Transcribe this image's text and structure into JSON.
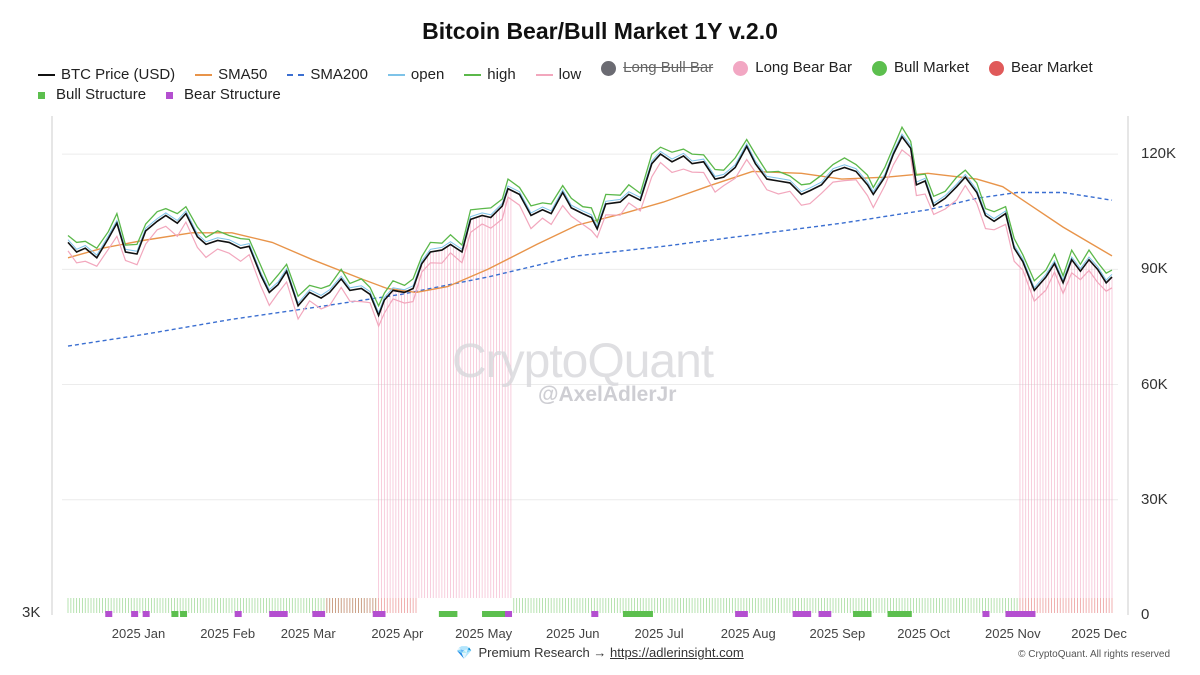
{
  "chart_data": {
    "type": "line",
    "title": "Bitcoin Bear/Bull Market 1Y v.2.0",
    "legend": [
      {
        "name": "BTC Price (USD)",
        "kind": "line",
        "color": "#111111"
      },
      {
        "name": "SMA50",
        "kind": "line",
        "color": "#e8944a"
      },
      {
        "name": "SMA200",
        "kind": "dashed",
        "color": "#3b6fd1"
      },
      {
        "name": "open",
        "kind": "line",
        "color": "#7ec3e8"
      },
      {
        "name": "high",
        "kind": "line",
        "color": "#5bb84a"
      },
      {
        "name": "low",
        "kind": "line",
        "color": "#f2a7bd"
      },
      {
        "name": "Long Bull Bar",
        "kind": "dot",
        "color": "#6b6b72",
        "hidden": true
      },
      {
        "name": "Long Bear Bar",
        "kind": "dot",
        "color": "#f2a7c3"
      },
      {
        "name": "Bull Market",
        "kind": "dot",
        "color": "#5cbf4e"
      },
      {
        "name": "Bear Market",
        "kind": "dot",
        "color": "#e05a5a"
      },
      {
        "name": "Bull Structure",
        "kind": "square",
        "color": "#5cbf4e"
      },
      {
        "name": "Bear Structure",
        "kind": "square",
        "color": "#b44fd0"
      }
    ],
    "legend_placement": "top",
    "x_axis": {
      "ticks": [
        "2025 Jan",
        "2025 Feb",
        "2025 Mar",
        "2025 Apr",
        "2025 May",
        "2025 Jun",
        "2025 Jul",
        "2025 Aug",
        "2025 Sep",
        "2025 Oct",
        "2025 Nov",
        "2025 Dec"
      ],
      "tick_dates": [
        "2025-01-01",
        "2025-02-01",
        "2025-03-01",
        "2025-04-01",
        "2025-05-01",
        "2025-06-01",
        "2025-07-01",
        "2025-08-01",
        "2025-09-01",
        "2025-10-01",
        "2025-11-01",
        "2025-12-01"
      ],
      "range": [
        "2024-12-20",
        "2025-12-18"
      ]
    },
    "y_axis": {
      "position": "right",
      "ticks": [
        0,
        30000,
        60000,
        90000,
        120000
      ],
      "tick_labels": [
        "0",
        "30K",
        "60K",
        "90K",
        "120K"
      ],
      "ylim": [
        0,
        132000
      ],
      "left_label": "3K"
    },
    "grid": true,
    "series": [
      {
        "name": "BTC Price (USD)",
        "points": [
          [
            "2024-12-20",
            97000
          ],
          [
            "2024-12-23",
            94500
          ],
          [
            "2024-12-26",
            95500
          ],
          [
            "2024-12-30",
            93000
          ],
          [
            "2025-01-03",
            98000
          ],
          [
            "2025-01-06",
            102000
          ],
          [
            "2025-01-09",
            94500
          ],
          [
            "2025-01-13",
            94000
          ],
          [
            "2025-01-16",
            100000
          ],
          [
            "2025-01-20",
            102500
          ],
          [
            "2025-01-23",
            104000
          ],
          [
            "2025-01-27",
            102000
          ],
          [
            "2025-01-30",
            104500
          ],
          [
            "2025-02-03",
            98500
          ],
          [
            "2025-02-06",
            96500
          ],
          [
            "2025-02-10",
            97500
          ],
          [
            "2025-02-14",
            97000
          ],
          [
            "2025-02-18",
            95500
          ],
          [
            "2025-02-21",
            96000
          ],
          [
            "2025-02-25",
            88500
          ],
          [
            "2025-02-28",
            84000
          ],
          [
            "2025-03-03",
            86000
          ],
          [
            "2025-03-06",
            89500
          ],
          [
            "2025-03-10",
            80500
          ],
          [
            "2025-03-14",
            84000
          ],
          [
            "2025-03-18",
            82500
          ],
          [
            "2025-03-21",
            84000
          ],
          [
            "2025-03-25",
            87500
          ],
          [
            "2025-03-28",
            84500
          ],
          [
            "2025-04-01",
            85000
          ],
          [
            "2025-04-04",
            83500
          ],
          [
            "2025-04-07",
            78000
          ],
          [
            "2025-04-09",
            82000
          ],
          [
            "2025-04-12",
            84500
          ],
          [
            "2025-04-16",
            84000
          ],
          [
            "2025-04-19",
            85000
          ],
          [
            "2025-04-22",
            91500
          ],
          [
            "2025-04-25",
            94500
          ],
          [
            "2025-04-29",
            95000
          ],
          [
            "2025-05-02",
            96500
          ],
          [
            "2025-05-06",
            94500
          ],
          [
            "2025-05-09",
            103000
          ],
          [
            "2025-05-13",
            104000
          ],
          [
            "2025-05-16",
            103500
          ],
          [
            "2025-05-20",
            106500
          ],
          [
            "2025-05-22",
            111000
          ],
          [
            "2025-05-26",
            109500
          ],
          [
            "2025-05-30",
            104000
          ],
          [
            "2025-06-03",
            105500
          ],
          [
            "2025-06-06",
            104500
          ],
          [
            "2025-06-10",
            110000
          ],
          [
            "2025-06-13",
            106000
          ],
          [
            "2025-06-17",
            104500
          ],
          [
            "2025-06-20",
            103500
          ],
          [
            "2025-06-22",
            100500
          ],
          [
            "2025-06-25",
            107000
          ],
          [
            "2025-06-30",
            107500
          ],
          [
            "2025-07-03",
            109500
          ],
          [
            "2025-07-07",
            108000
          ],
          [
            "2025-07-11",
            117500
          ],
          [
            "2025-07-14",
            120000
          ],
          [
            "2025-07-18",
            118000
          ],
          [
            "2025-07-22",
            119500
          ],
          [
            "2025-07-25",
            117500
          ],
          [
            "2025-07-29",
            118000
          ],
          [
            "2025-08-02",
            113500
          ],
          [
            "2025-08-05",
            114000
          ],
          [
            "2025-08-09",
            116500
          ],
          [
            "2025-08-13",
            122000
          ],
          [
            "2025-08-16",
            117500
          ],
          [
            "2025-08-20",
            113500
          ],
          [
            "2025-08-24",
            113000
          ],
          [
            "2025-08-28",
            112500
          ],
          [
            "2025-09-01",
            109500
          ],
          [
            "2025-09-04",
            110500
          ],
          [
            "2025-09-08",
            112000
          ],
          [
            "2025-09-12",
            115500
          ],
          [
            "2025-09-16",
            116500
          ],
          [
            "2025-09-20",
            115500
          ],
          [
            "2025-09-24",
            112000
          ],
          [
            "2025-09-26",
            109500
          ],
          [
            "2025-09-30",
            114000
          ],
          [
            "2025-10-03",
            120000
          ],
          [
            "2025-10-06",
            124500
          ],
          [
            "2025-10-09",
            121500
          ],
          [
            "2025-10-11",
            112000
          ],
          [
            "2025-10-14",
            113000
          ],
          [
            "2025-10-17",
            106500
          ],
          [
            "2025-10-21",
            108500
          ],
          [
            "2025-10-25",
            111500
          ],
          [
            "2025-10-28",
            114000
          ],
          [
            "2025-11-01",
            110000
          ],
          [
            "2025-11-04",
            104000
          ],
          [
            "2025-11-07",
            102500
          ],
          [
            "2025-11-11",
            104500
          ],
          [
            "2025-11-14",
            95500
          ],
          [
            "2025-11-17",
            92000
          ],
          [
            "2025-11-21",
            84500
          ],
          [
            "2025-11-25",
            88000
          ],
          [
            "2025-11-28",
            91500
          ],
          [
            "2025-12-01",
            86500
          ],
          [
            "2025-12-04",
            92500
          ],
          [
            "2025-12-07",
            89500
          ],
          [
            "2025-12-10",
            92500
          ],
          [
            "2025-12-13",
            90000
          ],
          [
            "2025-12-16",
            86500
          ],
          [
            "2025-12-18",
            88000
          ]
        ]
      },
      {
        "name": "SMA50",
        "points": [
          [
            "2024-12-20",
            93000
          ],
          [
            "2025-01-01",
            95500
          ],
          [
            "2025-01-15",
            97500
          ],
          [
            "2025-02-01",
            99500
          ],
          [
            "2025-02-15",
            99500
          ],
          [
            "2025-03-01",
            97000
          ],
          [
            "2025-03-15",
            92500
          ],
          [
            "2025-04-01",
            87500
          ],
          [
            "2025-04-10",
            85000
          ],
          [
            "2025-04-20",
            84000
          ],
          [
            "2025-05-01",
            85500
          ],
          [
            "2025-05-15",
            90000
          ],
          [
            "2025-06-01",
            96500
          ],
          [
            "2025-06-15",
            101500
          ],
          [
            "2025-07-01",
            104500
          ],
          [
            "2025-07-15",
            107500
          ],
          [
            "2025-08-01",
            112000
          ],
          [
            "2025-08-15",
            115500
          ],
          [
            "2025-09-01",
            115000
          ],
          [
            "2025-09-15",
            113500
          ],
          [
            "2025-10-01",
            114000
          ],
          [
            "2025-10-15",
            115000
          ],
          [
            "2025-11-01",
            113500
          ],
          [
            "2025-11-10",
            111500
          ],
          [
            "2025-11-20",
            106500
          ],
          [
            "2025-12-01",
            101000
          ],
          [
            "2025-12-10",
            97000
          ],
          [
            "2025-12-18",
            93500
          ]
        ]
      },
      {
        "name": "SMA200",
        "points": [
          [
            "2024-12-20",
            70000
          ],
          [
            "2025-01-15",
            73000
          ],
          [
            "2025-02-15",
            77000
          ],
          [
            "2025-03-15",
            80000
          ],
          [
            "2025-04-15",
            83500
          ],
          [
            "2025-05-15",
            88000
          ],
          [
            "2025-06-15",
            93500
          ],
          [
            "2025-07-15",
            96000
          ],
          [
            "2025-08-15",
            99000
          ],
          [
            "2025-09-15",
            102000
          ],
          [
            "2025-10-15",
            105500
          ],
          [
            "2025-11-01",
            108500
          ],
          [
            "2025-11-15",
            110000
          ],
          [
            "2025-12-01",
            110000
          ],
          [
            "2025-12-18",
            108000
          ]
        ]
      }
    ],
    "bear_periods": [
      [
        "2025-04-07",
        "2025-05-23"
      ],
      [
        "2025-11-16",
        "2025-12-18"
      ]
    ],
    "structure_markers": {
      "bull": [
        "2025-01-26",
        "2025-01-29",
        "2025-04-29",
        "2025-05-01",
        "2025-05-03",
        "2025-05-14",
        "2025-05-16",
        "2025-05-18",
        "2025-05-20",
        "2025-07-02",
        "2025-07-04",
        "2025-07-06",
        "2025-07-08",
        "2025-07-10",
        "2025-09-20",
        "2025-09-22",
        "2025-09-24",
        "2025-10-02",
        "2025-10-04",
        "2025-10-06",
        "2025-10-08"
      ],
      "bear": [
        "2025-01-03",
        "2025-01-12",
        "2025-01-16",
        "2025-02-17",
        "2025-03-01",
        "2025-03-03",
        "2025-03-05",
        "2025-03-16",
        "2025-03-18",
        "2025-04-06",
        "2025-04-08",
        "2025-05-22",
        "2025-06-21",
        "2025-08-10",
        "2025-08-12",
        "2025-08-30",
        "2025-09-01",
        "2025-09-03",
        "2025-09-08",
        "2025-09-10",
        "2025-11-04",
        "2025-11-12",
        "2025-11-14",
        "2025-11-16",
        "2025-11-18",
        "2025-11-20"
      ]
    },
    "market_bars": {
      "bull": [
        [
          "2024-12-20",
          "2025-04-06"
        ],
        [
          "2025-05-24",
          "2025-11-15"
        ]
      ],
      "bear": [
        [
          "2025-03-20",
          "2025-04-20"
        ],
        [
          "2025-11-16",
          "2025-12-18"
        ]
      ]
    }
  },
  "watermark": {
    "brand": "CryptoQuant",
    "handle": "@AxelAdlerJr"
  },
  "footer": {
    "premium_icon": "gem-icon",
    "premium_text": "Premium Research →",
    "link_text": "https://adlerinsight.com",
    "copyright": "© CryptoQuant. All rights reserved"
  }
}
